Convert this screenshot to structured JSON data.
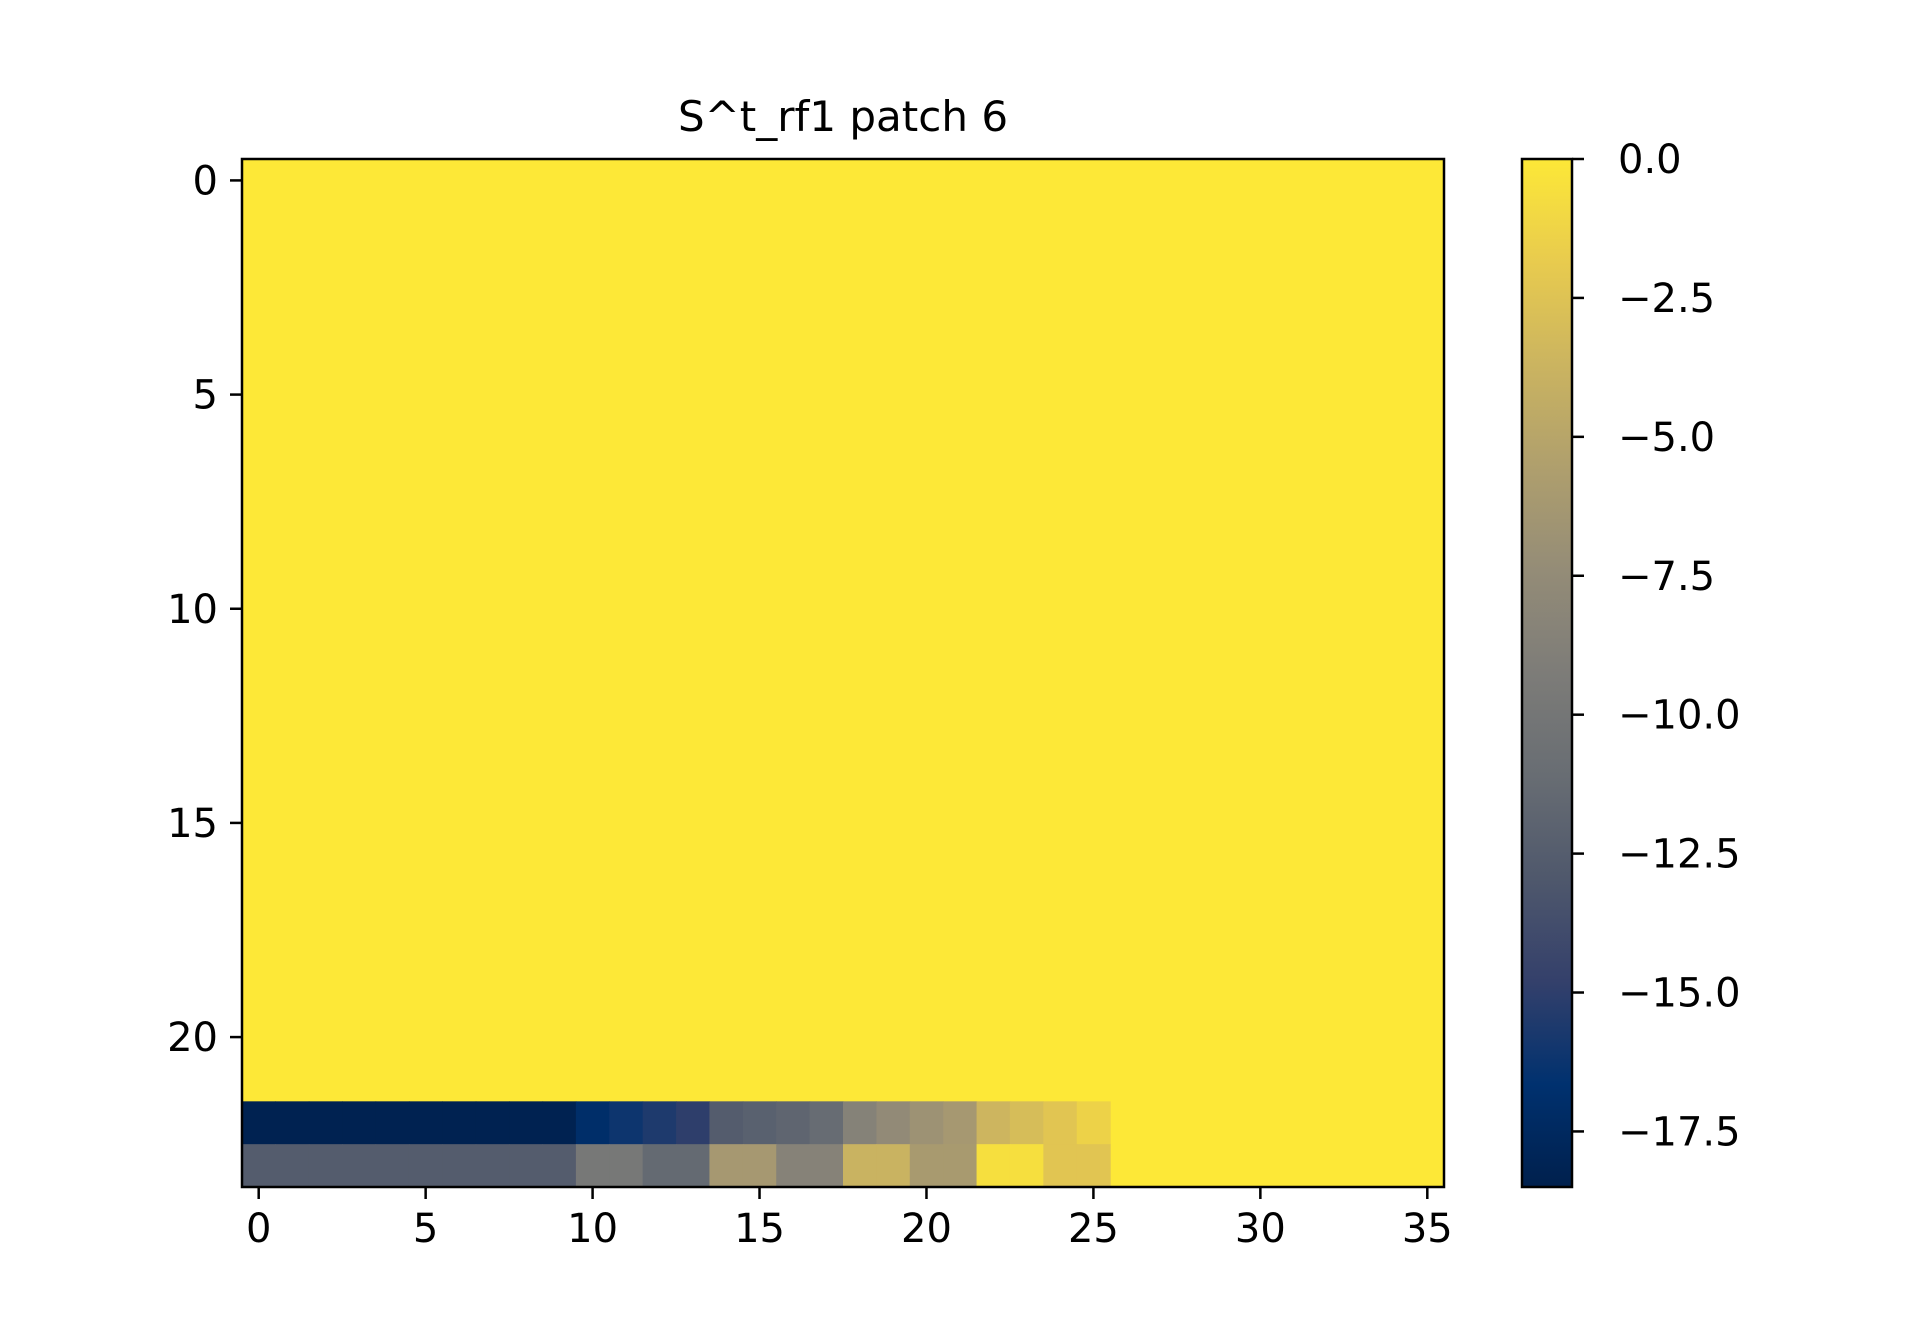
{
  "chart_data": {
    "type": "heatmap",
    "title": "S^t_rf1 patch 6",
    "rows": 24,
    "cols": 36,
    "fill_value": 0.0,
    "colormap": "cividis",
    "vmin": -18.5,
    "vmax": 0.0,
    "x_ticks": [
      0,
      5,
      10,
      15,
      20,
      25,
      30,
      35
    ],
    "y_ticks": [
      0,
      5,
      10,
      15,
      20
    ],
    "colorbar_ticks": [
      0.0,
      -2.5,
      -5.0,
      -7.5,
      -10.0,
      -12.5,
      -15.0,
      -17.5
    ],
    "colorbar_tick_labels": [
      "0.0",
      "−2.5",
      "−5.0",
      "−7.5",
      "−10.0",
      "−12.5",
      "−15.0",
      "−17.5"
    ],
    "nonzero_rows": [
      {
        "row": 22,
        "values": [
          -18.3,
          -18.3,
          -18.3,
          -18.3,
          -18.3,
          -18.3,
          -18.3,
          -18.3,
          -18.3,
          -18.3,
          -17.0,
          -16.2,
          -15.6,
          -15.0,
          -12.6,
          -12.2,
          -11.8,
          -11.2,
          -8.6,
          -7.6,
          -6.8,
          -6.2,
          -3.6,
          -3.0,
          -2.3,
          -1.4
        ]
      },
      {
        "row": 23,
        "values": [
          -12.6,
          -12.6,
          -12.6,
          -12.6,
          -12.6,
          -12.6,
          -12.6,
          -12.6,
          -12.6,
          -12.6,
          -9.8,
          -9.8,
          -11.4,
          -11.4,
          -6.2,
          -6.2,
          -8.5,
          -8.5,
          -3.8,
          -3.8,
          -6.0,
          -6.0,
          -0.6,
          -0.6,
          -2.3,
          -2.3
        ]
      }
    ]
  }
}
